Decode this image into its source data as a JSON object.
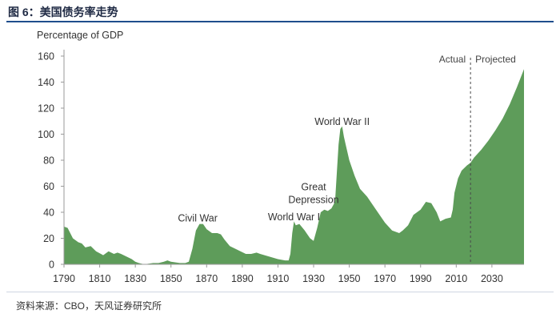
{
  "figure": {
    "title": "图 6：美国债务率走势",
    "source": "资料来源：CBO，天风证券研究所"
  },
  "chart_data": {
    "type": "area",
    "ylabel": "Percentage of GDP",
    "xlabel": "",
    "title": "",
    "xlim": [
      1790,
      2048
    ],
    "ylim": [
      0,
      160
    ],
    "x_ticks": [
      1790,
      1810,
      1830,
      1850,
      1870,
      1890,
      1910,
      1930,
      1950,
      1970,
      1990,
      2010,
      2030
    ],
    "y_ticks": [
      0,
      20,
      40,
      60,
      80,
      100,
      120,
      140,
      160
    ],
    "grid": false,
    "fill_color": "#5e9c5a",
    "divider": {
      "x": 2018,
      "left_label": "Actual",
      "right_label": "Projected"
    },
    "annotations": [
      {
        "text": "Civil War",
        "x": 1865,
        "y": 33
      },
      {
        "text": "World War I",
        "x": 1919,
        "y": 34
      },
      {
        "text": "Great",
        "x": 1930,
        "y": 57
      },
      {
        "text": "Depression",
        "x": 1930,
        "y": 47
      },
      {
        "text": "World War II",
        "x": 1946,
        "y": 107
      }
    ],
    "series": [
      {
        "values": [
          [
            1790,
            29
          ],
          [
            1792,
            28
          ],
          [
            1795,
            20
          ],
          [
            1798,
            17
          ],
          [
            1800,
            16
          ],
          [
            1802,
            13
          ],
          [
            1805,
            14
          ],
          [
            1808,
            10
          ],
          [
            1812,
            7
          ],
          [
            1815,
            10
          ],
          [
            1818,
            8
          ],
          [
            1820,
            9
          ],
          [
            1822,
            8
          ],
          [
            1825,
            6
          ],
          [
            1828,
            4
          ],
          [
            1830,
            2
          ],
          [
            1832,
            1
          ],
          [
            1835,
            0
          ],
          [
            1840,
            1
          ],
          [
            1843,
            1
          ],
          [
            1846,
            2
          ],
          [
            1848,
            3
          ],
          [
            1850,
            2
          ],
          [
            1855,
            1
          ],
          [
            1858,
            1
          ],
          [
            1860,
            2
          ],
          [
            1862,
            12
          ],
          [
            1864,
            26
          ],
          [
            1866,
            31
          ],
          [
            1868,
            31
          ],
          [
            1870,
            27
          ],
          [
            1873,
            24
          ],
          [
            1876,
            24
          ],
          [
            1878,
            23
          ],
          [
            1880,
            19
          ],
          [
            1883,
            14
          ],
          [
            1886,
            12
          ],
          [
            1889,
            10
          ],
          [
            1892,
            8
          ],
          [
            1895,
            8
          ],
          [
            1898,
            9
          ],
          [
            1900,
            8
          ],
          [
            1905,
            6
          ],
          [
            1910,
            4
          ],
          [
            1914,
            3
          ],
          [
            1916,
            3
          ],
          [
            1917,
            8
          ],
          [
            1918,
            24
          ],
          [
            1919,
            33
          ],
          [
            1920,
            30
          ],
          [
            1922,
            31
          ],
          [
            1925,
            26
          ],
          [
            1928,
            20
          ],
          [
            1930,
            18
          ],
          [
            1932,
            28
          ],
          [
            1934,
            40
          ],
          [
            1936,
            42
          ],
          [
            1938,
            41
          ],
          [
            1940,
            43
          ],
          [
            1942,
            48
          ],
          [
            1943,
            70
          ],
          [
            1944,
            92
          ],
          [
            1945,
            104
          ],
          [
            1946,
            106
          ],
          [
            1947,
            98
          ],
          [
            1948,
            92
          ],
          [
            1950,
            80
          ],
          [
            1953,
            68
          ],
          [
            1956,
            58
          ],
          [
            1960,
            52
          ],
          [
            1965,
            42
          ],
          [
            1970,
            32
          ],
          [
            1974,
            26
          ],
          [
            1978,
            24
          ],
          [
            1980,
            26
          ],
          [
            1983,
            30
          ],
          [
            1986,
            38
          ],
          [
            1990,
            42
          ],
          [
            1993,
            48
          ],
          [
            1996,
            47
          ],
          [
            1999,
            40
          ],
          [
            2001,
            33
          ],
          [
            2004,
            35
          ],
          [
            2007,
            36
          ],
          [
            2008,
            42
          ],
          [
            2009,
            55
          ],
          [
            2011,
            66
          ],
          [
            2013,
            72
          ],
          [
            2016,
            76
          ],
          [
            2018,
            78
          ],
          [
            2020,
            82
          ],
          [
            2024,
            88
          ],
          [
            2028,
            95
          ],
          [
            2032,
            103
          ],
          [
            2036,
            112
          ],
          [
            2040,
            123
          ],
          [
            2044,
            136
          ],
          [
            2048,
            150
          ]
        ]
      }
    ]
  }
}
